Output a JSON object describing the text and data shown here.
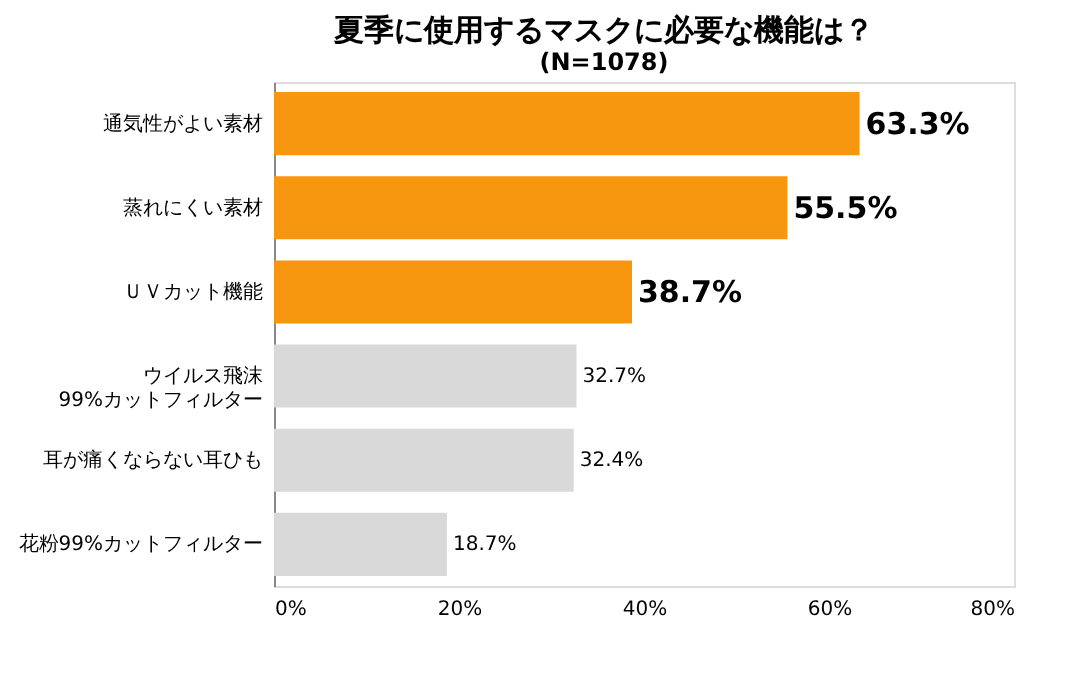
{
  "chart_data": {
    "type": "bar",
    "orientation": "horizontal",
    "title": "夏季に使用するマスクに必要な機能は？",
    "subtitle": "(N=1078)",
    "categories": [
      "通気性がよい素材",
      "蒸れにくい素材",
      "ＵＶカット機能",
      "ウイルス飛沫\n99%カットフィルター",
      "耳が痛くならない耳ひも",
      "花粉99%カットフィルター"
    ],
    "values": [
      63.3,
      55.5,
      38.7,
      32.7,
      32.4,
      18.7
    ],
    "colors": [
      "#f7960f",
      "#f7960f",
      "#f7960f",
      "#d9d9d9",
      "#d9d9d9",
      "#d9d9d9"
    ],
    "value_labels": [
      "63.3%",
      "55.5%",
      "38.7%",
      "32.7%",
      "32.4%",
      "18.7%"
    ],
    "xlim": [
      0,
      80
    ],
    "xticks": [
      {
        "value": 0,
        "label": "0%"
      },
      {
        "value": 20,
        "label": "20%"
      },
      {
        "value": 40,
        "label": "40%"
      },
      {
        "value": 60,
        "label": "60%"
      },
      {
        "value": 80,
        "label": "80%"
      }
    ],
    "grid": false
  }
}
